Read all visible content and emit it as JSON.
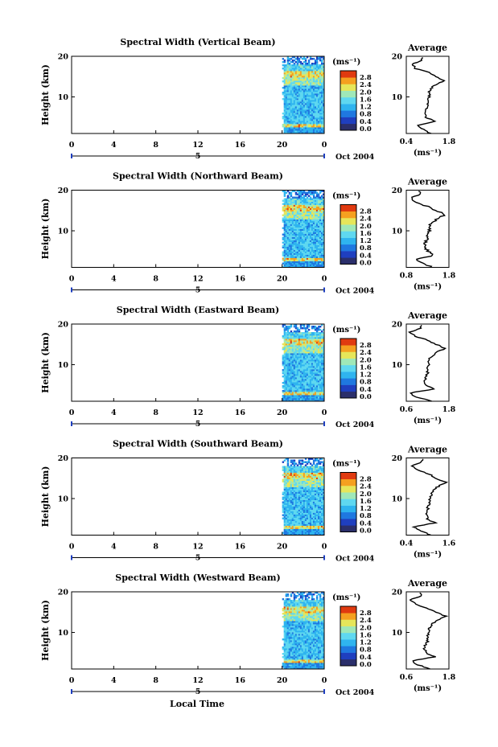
{
  "figure": {
    "xlabel": "Local Time",
    "date_label": "Oct 2004",
    "colorbar_unit": "(ms⁻¹)",
    "colorbar_ticks": [
      "2.8",
      "2.4",
      "2.0",
      "1.6",
      "1.2",
      "0.8",
      "0.4",
      "0.0"
    ],
    "colorbar_colors": [
      "#2b2f6b",
      "#1f3fbf",
      "#1f78e0",
      "#2fb4ef",
      "#5fd8f0",
      "#9fe8b8",
      "#e6e65a",
      "#f5a020",
      "#e03a10"
    ]
  },
  "chart_data": [
    {
      "type": "heatmap",
      "title": "Spectral Width (Vertical Beam)",
      "ylabel": "Height (km)",
      "x_ticks": [
        "0",
        "4",
        "8",
        "12",
        "16",
        "20",
        "0"
      ],
      "xlim": [
        0,
        24
      ],
      "y_ticks": [
        "20",
        "10"
      ],
      "ylim": [
        1,
        20
      ],
      "day_marker": "5",
      "data_start_hour": 20,
      "profile": {
        "title": "Average",
        "xlabel": "(ms⁻¹)",
        "x_ticks": [
          "0.4",
          "1.8"
        ],
        "xlim": [
          0.4,
          1.8
        ],
        "y_ticks": [
          "20",
          "10"
        ],
        "ylim": [
          1,
          20
        ],
        "height": [
          1.5,
          2.5,
          3.5,
          4.5,
          5.5,
          6.5,
          7.5,
          8.5,
          9.5,
          10.5,
          11.5,
          12.5,
          13.5,
          14.5,
          15.5,
          16.5,
          17.5,
          18.5,
          19.5
        ],
        "width": [
          1.2,
          0.95,
          0.75,
          1.35,
          1.05,
          1.0,
          1.05,
          1.1,
          1.1,
          1.15,
          1.15,
          1.2,
          1.35,
          1.65,
          1.4,
          1.15,
          0.7,
          0.6,
          0.9
        ]
      }
    },
    {
      "type": "heatmap",
      "title": "Spectral Width (Northward Beam)",
      "ylabel": "Height (km)",
      "x_ticks": [
        "0",
        "4",
        "8",
        "12",
        "16",
        "20",
        "0"
      ],
      "xlim": [
        0,
        24
      ],
      "y_ticks": [
        "20",
        "10"
      ],
      "ylim": [
        1,
        20
      ],
      "day_marker": "5",
      "data_start_hour": 20,
      "profile": {
        "title": "Average",
        "xlabel": "(ms⁻¹)",
        "x_ticks": [
          "0.8",
          "1.8"
        ],
        "xlim": [
          0.8,
          1.8
        ],
        "y_ticks": [
          "20",
          "10"
        ],
        "ylim": [
          1,
          20
        ],
        "height": [
          1.5,
          2.5,
          3.5,
          4.5,
          5.5,
          6.5,
          7.5,
          8.5,
          9.5,
          10.5,
          11.5,
          12.5,
          13.5,
          14.5,
          15.5,
          16.5,
          17.5,
          18.5,
          19.5
        ],
        "width": [
          1.4,
          1.2,
          1.05,
          1.45,
          1.3,
          1.25,
          1.25,
          1.3,
          1.3,
          1.35,
          1.35,
          1.4,
          1.55,
          1.7,
          1.5,
          1.3,
          1.0,
          0.9,
          1.1
        ]
      }
    },
    {
      "type": "heatmap",
      "title": "Spectral Width (Eastward Beam)",
      "ylabel": "Height (km)",
      "x_ticks": [
        "0",
        "4",
        "8",
        "12",
        "16",
        "20",
        "0"
      ],
      "xlim": [
        0,
        24
      ],
      "y_ticks": [
        "20",
        "10"
      ],
      "ylim": [
        1,
        20
      ],
      "day_marker": "5",
      "data_start_hour": 20,
      "profile": {
        "title": "Average",
        "xlabel": "(ms⁻¹)",
        "x_ticks": [
          "0.6",
          "1.8"
        ],
        "xlim": [
          0.6,
          1.8
        ],
        "y_ticks": [
          "20",
          "10"
        ],
        "ylim": [
          1,
          20
        ],
        "height": [
          1.5,
          2.5,
          3.5,
          4.5,
          5.5,
          6.5,
          7.5,
          8.5,
          9.5,
          10.5,
          11.5,
          12.5,
          13.5,
          14.5,
          15.5,
          16.5,
          17.5,
          18.5,
          19.5
        ],
        "width": [
          1.3,
          0.9,
          0.7,
          1.4,
          1.15,
          1.1,
          1.15,
          1.2,
          1.2,
          1.25,
          1.25,
          1.3,
          1.45,
          1.7,
          1.45,
          1.2,
          0.85,
          0.7,
          1.0
        ]
      }
    },
    {
      "type": "heatmap",
      "title": "Spectral Width (Southward Beam)",
      "ylabel": "Height (km)",
      "x_ticks": [
        "0",
        "4",
        "8",
        "12",
        "16",
        "20",
        "0"
      ],
      "xlim": [
        0,
        24
      ],
      "y_ticks": [
        "20",
        "10"
      ],
      "ylim": [
        1,
        20
      ],
      "day_marker": "5",
      "data_start_hour": 20,
      "profile": {
        "title": "Average",
        "xlabel": "(ms⁻¹)",
        "x_ticks": [
          "0.4",
          "1.6"
        ],
        "xlim": [
          0.4,
          1.6
        ],
        "y_ticks": [
          "20",
          "10"
        ],
        "ylim": [
          1,
          20
        ],
        "height": [
          1.5,
          2.5,
          3.5,
          4.5,
          5.5,
          6.5,
          7.5,
          8.5,
          9.5,
          10.5,
          11.5,
          12.5,
          13.5,
          14.5,
          15.5,
          16.5,
          17.5,
          18.5,
          19.5
        ],
        "width": [
          1.1,
          0.8,
          0.6,
          1.2,
          1.0,
          0.95,
          1.0,
          1.0,
          1.05,
          1.05,
          1.1,
          1.15,
          1.3,
          1.5,
          1.25,
          1.05,
          0.7,
          0.55,
          0.85
        ]
      }
    },
    {
      "type": "heatmap",
      "title": "Spectral Width (Westward Beam)",
      "ylabel": "Height (km)",
      "x_ticks": [
        "0",
        "4",
        "8",
        "12",
        "16",
        "20",
        "0"
      ],
      "xlim": [
        0,
        24
      ],
      "y_ticks": [
        "20",
        "10"
      ],
      "ylim": [
        1,
        20
      ],
      "day_marker": "5",
      "data_start_hour": 20,
      "profile": {
        "title": "Average",
        "xlabel": "(ms⁻¹)",
        "x_ticks": [
          "0.6",
          "1.8"
        ],
        "xlim": [
          0.6,
          1.8
        ],
        "y_ticks": [
          "20",
          "10"
        ],
        "ylim": [
          1,
          20
        ],
        "height": [
          1.5,
          2.5,
          3.5,
          4.5,
          5.5,
          6.5,
          7.5,
          8.5,
          9.5,
          10.5,
          11.5,
          12.5,
          13.5,
          14.5,
          15.5,
          16.5,
          17.5,
          18.5,
          19.5
        ],
        "width": [
          1.3,
          0.95,
          0.75,
          1.4,
          1.15,
          1.1,
          1.15,
          1.2,
          1.2,
          1.25,
          1.25,
          1.3,
          1.5,
          1.7,
          1.45,
          1.2,
          0.85,
          0.7,
          1.0
        ]
      }
    }
  ]
}
